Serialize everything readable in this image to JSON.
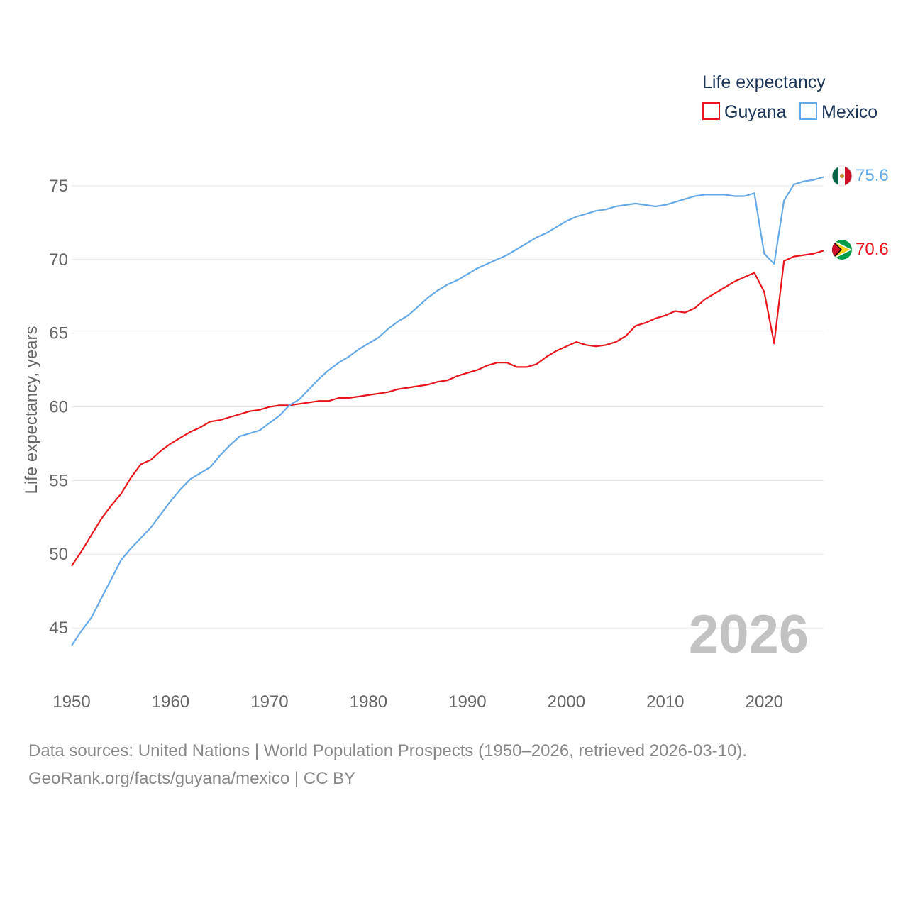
{
  "legend": {
    "title": "Life expectancy",
    "items": [
      {
        "name": "Guyana",
        "color": "#e8161c"
      },
      {
        "name": "Mexico",
        "color": "#65a9e6"
      }
    ]
  },
  "year_watermark": "2026",
  "end_labels": {
    "Guyana": "70.6",
    "Mexico": "75.6"
  },
  "source": {
    "line1": "Data sources: United Nations | World Population Prospects (1950–2026, retrieved 2026-03-10).",
    "line2": "GeoRank.org/facts/guyana/mexico | CC BY"
  },
  "chart_data": {
    "type": "line",
    "title": "Life expectancy",
    "xlabel": "",
    "ylabel": "Life expectancy, years",
    "xlim": [
      1950,
      2026
    ],
    "ylim": [
      42.5,
      77.5
    ],
    "xticks": [
      1950,
      1960,
      1970,
      1980,
      1990,
      2000,
      2010,
      2020
    ],
    "yticks": [
      45,
      50,
      55,
      60,
      65,
      70,
      75
    ],
    "grid": true,
    "legend_position": "top-right",
    "x": [
      1950,
      1951,
      1952,
      1953,
      1954,
      1955,
      1956,
      1957,
      1958,
      1959,
      1960,
      1961,
      1962,
      1963,
      1964,
      1965,
      1966,
      1967,
      1968,
      1969,
      1970,
      1971,
      1972,
      1973,
      1974,
      1975,
      1976,
      1977,
      1978,
      1979,
      1980,
      1981,
      1982,
      1983,
      1984,
      1985,
      1986,
      1987,
      1988,
      1989,
      1990,
      1991,
      1992,
      1993,
      1994,
      1995,
      1996,
      1997,
      1998,
      1999,
      2000,
      2001,
      2002,
      2003,
      2004,
      2005,
      2006,
      2007,
      2008,
      2009,
      2010,
      2011,
      2012,
      2013,
      2014,
      2015,
      2016,
      2017,
      2018,
      2019,
      2020,
      2021,
      2022,
      2023,
      2024,
      2025,
      2026
    ],
    "series": [
      {
        "name": "Guyana",
        "color": "#e8161c",
        "values": [
          49.2,
          50.2,
          51.3,
          52.4,
          53.3,
          54.1,
          55.2,
          56.1,
          56.4,
          57.0,
          57.5,
          57.9,
          58.3,
          58.6,
          59.0,
          59.1,
          59.3,
          59.5,
          59.7,
          59.8,
          60.0,
          60.1,
          60.1,
          60.2,
          60.3,
          60.4,
          60.4,
          60.6,
          60.6,
          60.7,
          60.8,
          60.9,
          61.0,
          61.2,
          61.3,
          61.4,
          61.5,
          61.7,
          61.8,
          62.1,
          62.3,
          62.5,
          62.8,
          63.0,
          63.0,
          62.7,
          62.7,
          62.9,
          63.4,
          63.8,
          64.1,
          64.4,
          64.2,
          64.1,
          64.2,
          64.4,
          64.8,
          65.5,
          65.7,
          66.0,
          66.2,
          66.5,
          66.4,
          66.7,
          67.3,
          67.7,
          68.1,
          68.5,
          68.8,
          69.1,
          67.8,
          64.3,
          69.9,
          70.2,
          70.3,
          70.4,
          70.6
        ]
      },
      {
        "name": "Mexico",
        "color": "#65a9e6",
        "values": [
          43.8,
          44.8,
          45.7,
          47.0,
          48.3,
          49.6,
          50.4,
          51.1,
          51.8,
          52.7,
          53.6,
          54.4,
          55.1,
          55.5,
          55.9,
          56.7,
          57.4,
          58.0,
          58.2,
          58.4,
          58.9,
          59.4,
          60.1,
          60.5,
          61.2,
          61.9,
          62.5,
          63.0,
          63.4,
          63.9,
          64.3,
          64.7,
          65.3,
          65.8,
          66.2,
          66.8,
          67.4,
          67.9,
          68.3,
          68.6,
          69.0,
          69.4,
          69.7,
          70.0,
          70.3,
          70.7,
          71.1,
          71.5,
          71.8,
          72.2,
          72.6,
          72.9,
          73.1,
          73.3,
          73.4,
          73.6,
          73.7,
          73.8,
          73.7,
          73.6,
          73.7,
          73.9,
          74.1,
          74.3,
          74.4,
          74.4,
          74.4,
          74.3,
          74.3,
          74.5,
          70.4,
          69.7,
          74.0,
          75.1,
          75.3,
          75.4,
          75.6
        ]
      }
    ]
  }
}
